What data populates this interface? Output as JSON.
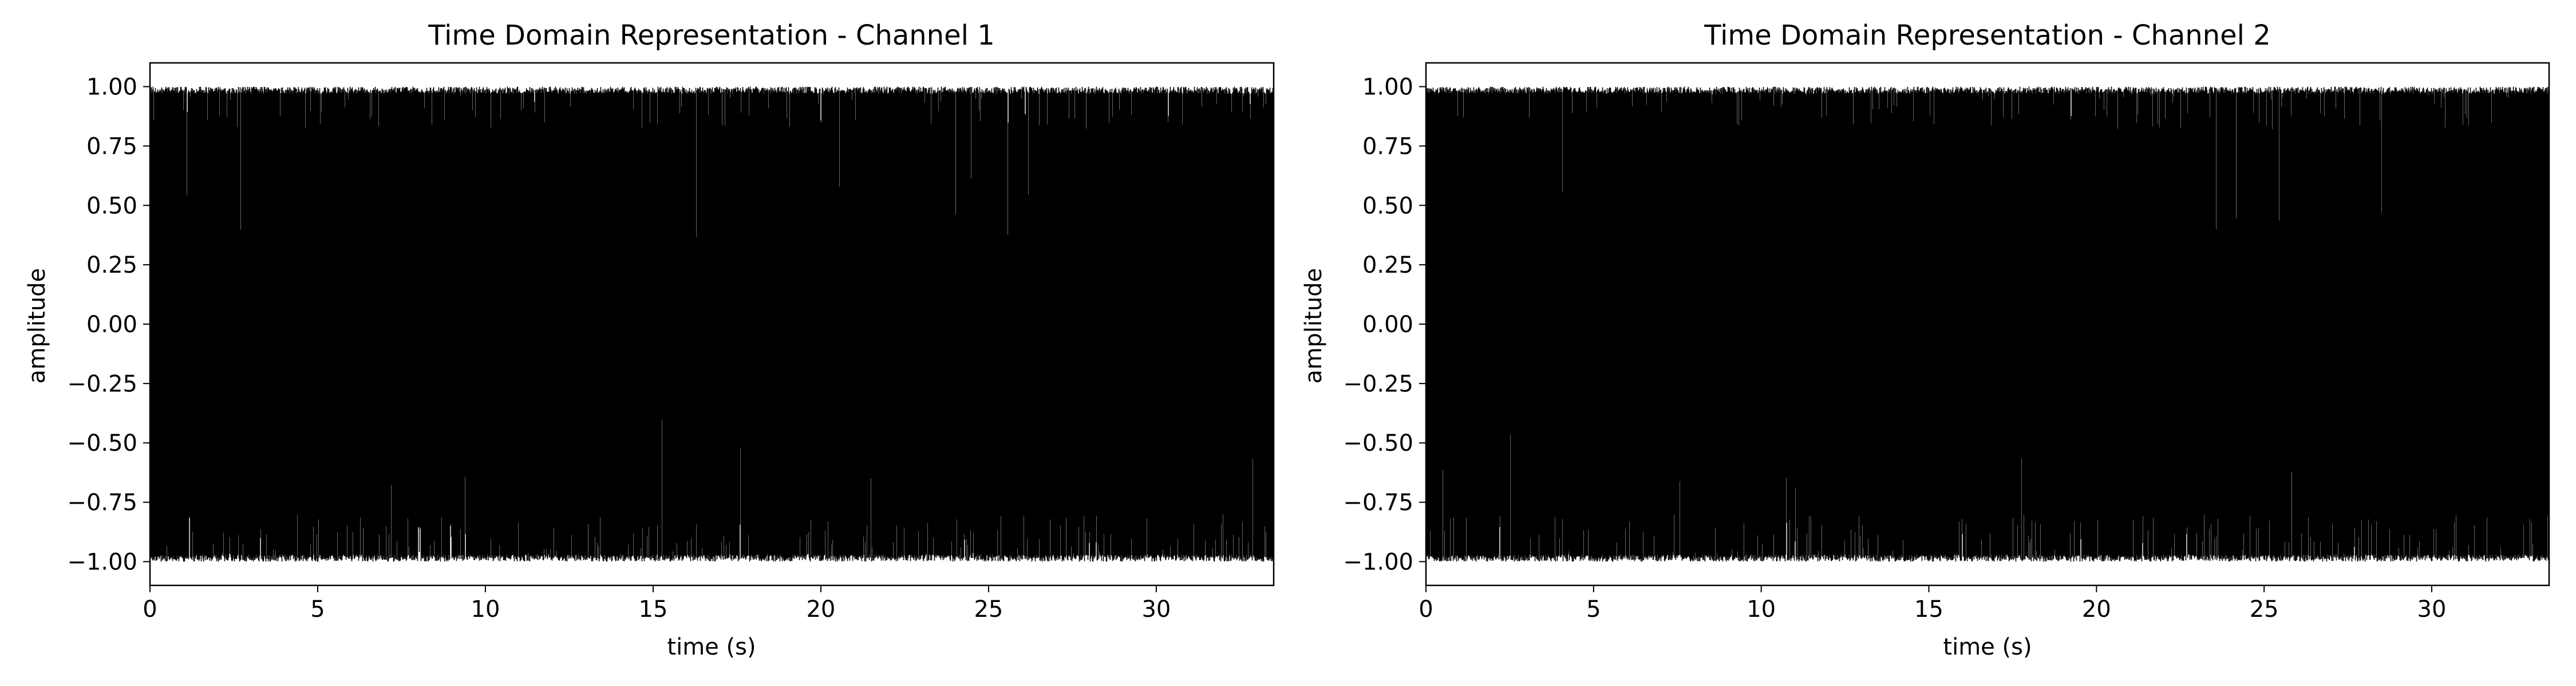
{
  "chart_data": [
    {
      "type": "line",
      "title": "Time Domain Representation - Channel 1",
      "xlabel": "time (s)",
      "ylabel": "amplitude",
      "xlim": [
        0,
        33.5
      ],
      "ylim": [
        -1.1,
        1.1
      ],
      "xticks": [
        0,
        5,
        10,
        15,
        20,
        25,
        30
      ],
      "xtick_labels": [
        "0",
        "5",
        "10",
        "15",
        "20",
        "25",
        "30"
      ],
      "yticks": [
        -1.0,
        -0.75,
        -0.5,
        -0.25,
        0.0,
        0.25,
        0.5,
        0.75,
        1.0
      ],
      "ytick_labels": [
        "−1.00",
        "−0.75",
        "−0.50",
        "−0.25",
        "0.00",
        "0.25",
        "0.50",
        "0.75",
        "1.00"
      ],
      "grid": false,
      "line_color": "#000000",
      "series": [
        {
          "amplitude_range": [
            -1.0,
            1.0
          ],
          "duration": 33.5
        }
      ]
    },
    {
      "type": "line",
      "title": "Time Domain Representation - Channel 2",
      "xlabel": "time (s)",
      "ylabel": "amplitude",
      "xlim": [
        0,
        33.5
      ],
      "ylim": [
        -1.1,
        1.1
      ],
      "xticks": [
        0,
        5,
        10,
        15,
        20,
        25,
        30
      ],
      "xtick_labels": [
        "0",
        "5",
        "10",
        "15",
        "20",
        "25",
        "30"
      ],
      "yticks": [
        -1.0,
        -0.75,
        -0.5,
        -0.25,
        0.0,
        0.25,
        0.5,
        0.75,
        1.0
      ],
      "ytick_labels": [
        "−1.00",
        "−0.75",
        "−0.50",
        "−0.25",
        "0.00",
        "0.25",
        "0.50",
        "0.75",
        "1.00"
      ],
      "grid": false,
      "line_color": "#000000",
      "series": [
        {
          "amplitude_range": [
            -1.0,
            1.0
          ],
          "duration": 33.5
        }
      ]
    }
  ]
}
